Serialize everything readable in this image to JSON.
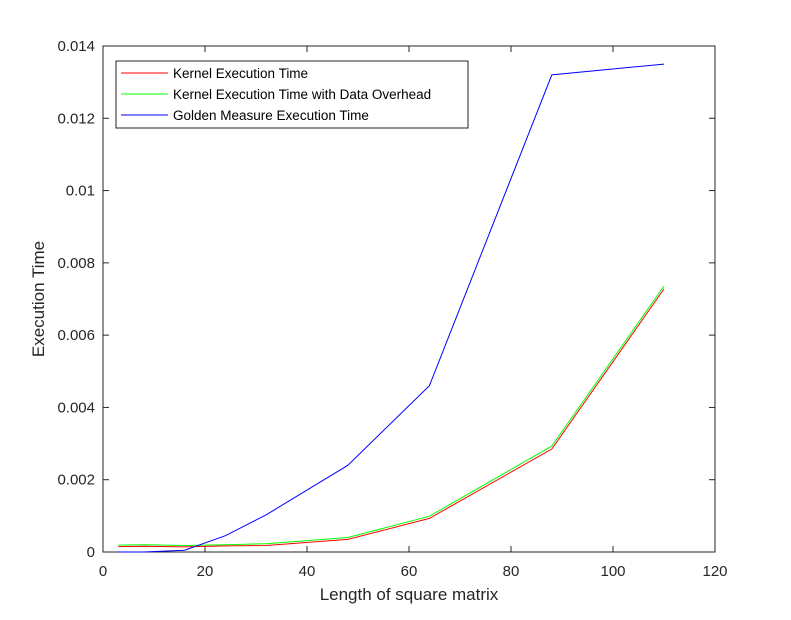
{
  "chart_data": {
    "type": "line",
    "title": "",
    "xlabel": "Length of square matrix",
    "ylabel": "Execution Time",
    "xlim": [
      0,
      120
    ],
    "ylim": [
      0,
      0.014
    ],
    "xticks": [
      0,
      20,
      40,
      60,
      80,
      100,
      120
    ],
    "yticks": [
      0,
      0.002,
      0.004,
      0.006,
      0.008,
      0.01,
      0.012,
      0.014
    ],
    "xtick_labels": [
      "0",
      "20",
      "40",
      "60",
      "80",
      "100",
      "120"
    ],
    "ytick_labels": [
      "0",
      "0.002",
      "0.004",
      "0.006",
      "0.008",
      "0.01",
      "0.012",
      "0.014"
    ],
    "grid": false,
    "legend_position": "top-left",
    "series": [
      {
        "name": "Kernel Execution Time",
        "color": "#ff0000",
        "x": [
          3,
          8,
          16,
          24,
          32,
          48,
          64,
          88,
          110
        ],
        "y": [
          0.00015,
          0.00016,
          0.00014,
          0.00017,
          0.00018,
          0.00035,
          0.00093,
          0.00285,
          0.00728
        ]
      },
      {
        "name": "Kernel Execution Time with Data Overhead",
        "color": "#00ff00",
        "x": [
          3,
          8,
          16,
          24,
          32,
          48,
          64,
          88,
          110
        ],
        "y": [
          0.00019,
          0.0002,
          0.00018,
          0.0002,
          0.00023,
          0.0004,
          0.00099,
          0.00293,
          0.00736
        ]
      },
      {
        "name": "Golden Measure Execution Time",
        "color": "#0000ff",
        "x": [
          3,
          8,
          16,
          24,
          32,
          48,
          64,
          88,
          110
        ],
        "y": [
          0.0,
          0.0,
          5e-05,
          0.00045,
          0.00103,
          0.0024,
          0.0046,
          0.0132,
          0.0135
        ]
      }
    ]
  }
}
